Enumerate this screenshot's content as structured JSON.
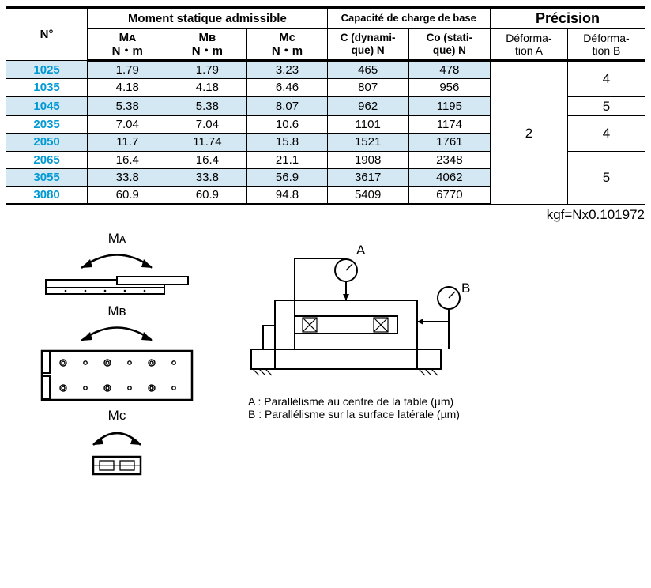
{
  "table": {
    "headers": {
      "n": "N°",
      "moment_group": "Moment statique admissible",
      "load_group": "Capacité de charge de base",
      "precision_group": "Précision",
      "ma": "Mᴀ\nN・m",
      "mb": "Mʙ\nN・m",
      "mc": "Mᴄ\nN・m",
      "c_dyn": "C (dynami-\nque) N",
      "c_stat": "Co (stati-\nque) N",
      "def_a": "Déforma-\ntion A",
      "def_b": "Déforma-\ntion B"
    },
    "rows": [
      {
        "n": "1025",
        "ma": "1.79",
        "mb": "1.79",
        "mc": "3.23",
        "cd": "465",
        "cs": "478"
      },
      {
        "n": "1035",
        "ma": "4.18",
        "mb": "4.18",
        "mc": "6.46",
        "cd": "807",
        "cs": "956"
      },
      {
        "n": "1045",
        "ma": "5.38",
        "mb": "5.38",
        "mc": "8.07",
        "cd": "962",
        "cs": "1195"
      },
      {
        "n": "2035",
        "ma": "7.04",
        "mb": "7.04",
        "mc": "10.6",
        "cd": "1101",
        "cs": "1174"
      },
      {
        "n": "2050",
        "ma": "11.7",
        "mb": "11.74",
        "mc": "15.8",
        "cd": "1521",
        "cs": "1761"
      },
      {
        "n": "2065",
        "ma": "16.4",
        "mb": "16.4",
        "mc": "21.1",
        "cd": "1908",
        "cs": "2348"
      },
      {
        "n": "3055",
        "ma": "33.8",
        "mb": "33.8",
        "mc": "56.9",
        "cd": "3617",
        "cs": "4062"
      },
      {
        "n": "3080",
        "ma": "60.9",
        "mb": "60.9",
        "mc": "94.8",
        "cd": "5409",
        "cs": "6770"
      }
    ],
    "def_a_value": "2",
    "def_b_group1": "4",
    "def_b_group2": "5",
    "def_b_group3": "4",
    "def_b_group4": "5",
    "row_colors": {
      "odd": "#d4e8f4",
      "even": "#ffffff"
    }
  },
  "footer_note": "kgf=Nx0.101972",
  "diagram_labels": {
    "ma": "Mᴀ",
    "mb": "Mʙ",
    "mc": "Mᴄ",
    "a": "A",
    "b": "B"
  },
  "legend": {
    "a": "A : Parallélisme au centre de la table (µm)",
    "b": "B : Parallélisme sur la surface latérale (µm)"
  },
  "colors": {
    "part_number": "#0099d4",
    "border": "#000000",
    "shade": "#d4e8f4"
  }
}
